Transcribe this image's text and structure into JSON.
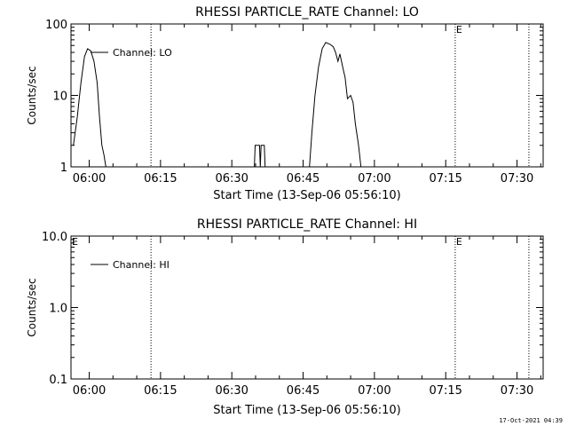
{
  "footer": {
    "timestamp": "17-Oct-2021 04:39"
  },
  "chart_data": [
    {
      "type": "line",
      "title": "RHESSI PARTICLE_RATE Channel: LO",
      "xlabel": "Start Time (13-Sep-06 05:56:10)",
      "ylabel": "Counts/sec",
      "yscale": "log",
      "ylim": [
        1,
        100
      ],
      "yticks": [
        "1",
        "10",
        "100"
      ],
      "xlim": [
        "05:56:10",
        "07:35:30"
      ],
      "xticks": [
        "06:00",
        "06:15",
        "06:30",
        "06:45",
        "07:00",
        "07:15",
        "07:30"
      ],
      "legend": "Channel: LO",
      "legend_position": "top-left",
      "markers": [
        {
          "time": "06:13:00",
          "label": ""
        },
        {
          "time": "07:17:00",
          "label": "E"
        },
        {
          "time": "07:32:30",
          "label": ""
        }
      ],
      "series": [
        {
          "name": "Channel: LO",
          "segments": [
            [
              [
                "05:56:40",
                2
              ],
              [
                "05:57:30",
                5
              ],
              [
                "05:58:15",
                15
              ],
              [
                "05:59:00",
                35
              ],
              [
                "05:59:40",
                45
              ],
              [
                "06:00:20",
                42
              ],
              [
                "06:01:00",
                30
              ],
              [
                "06:01:40",
                15
              ],
              [
                "06:02:10",
                5
              ],
              [
                "06:02:40",
                2
              ],
              [
                "06:03:05",
                1.5
              ],
              [
                "06:03:30",
                1
              ]
            ],
            [
              [
                "06:34:45",
                1
              ],
              [
                "06:34:55",
                2
              ],
              [
                "06:35:50",
                2
              ],
              [
                "06:36:00",
                1
              ],
              [
                "06:36:10",
                2
              ],
              [
                "06:36:50",
                2
              ],
              [
                "06:37:00",
                1
              ]
            ],
            [
              [
                "06:46:20",
                1
              ],
              [
                "06:46:50",
                3
              ],
              [
                "06:47:30",
                10
              ],
              [
                "06:48:15",
                25
              ],
              [
                "06:49:00",
                45
              ],
              [
                "06:49:45",
                55
              ],
              [
                "06:50:40",
                52
              ],
              [
                "06:51:20",
                48
              ],
              [
                "06:51:50",
                40
              ],
              [
                "06:52:20",
                30
              ],
              [
                "06:52:45",
                38
              ],
              [
                "06:53:10",
                28
              ],
              [
                "06:53:30",
                22
              ],
              [
                "06:53:50",
                18
              ],
              [
                "06:54:20",
                9
              ],
              [
                "06:55:00",
                10
              ],
              [
                "06:55:30",
                8
              ],
              [
                "06:56:00",
                4
              ],
              [
                "06:56:40",
                2
              ],
              [
                "06:57:10",
                1
              ]
            ]
          ]
        }
      ]
    },
    {
      "type": "line",
      "title": "RHESSI PARTICLE_RATE Channel: HI",
      "xlabel": "Start Time (13-Sep-06 05:56:10)",
      "ylabel": "Counts/sec",
      "yscale": "log",
      "ylim": [
        0.1,
        10
      ],
      "yticks": [
        "0.1",
        "1.0",
        "10.0"
      ],
      "xlim": [
        "05:56:10",
        "07:35:30"
      ],
      "xticks": [
        "06:00",
        "06:15",
        "06:30",
        "06:45",
        "07:00",
        "07:15",
        "07:30"
      ],
      "legend": "Channel: HI",
      "legend_position": "top-left",
      "markers": [
        {
          "time": "05:56:10",
          "label": "E"
        },
        {
          "time": "06:13:00",
          "label": ""
        },
        {
          "time": "07:17:00",
          "label": "E"
        },
        {
          "time": "07:32:30",
          "label": ""
        }
      ],
      "series": [
        {
          "name": "Channel: HI",
          "segments": []
        }
      ]
    }
  ]
}
